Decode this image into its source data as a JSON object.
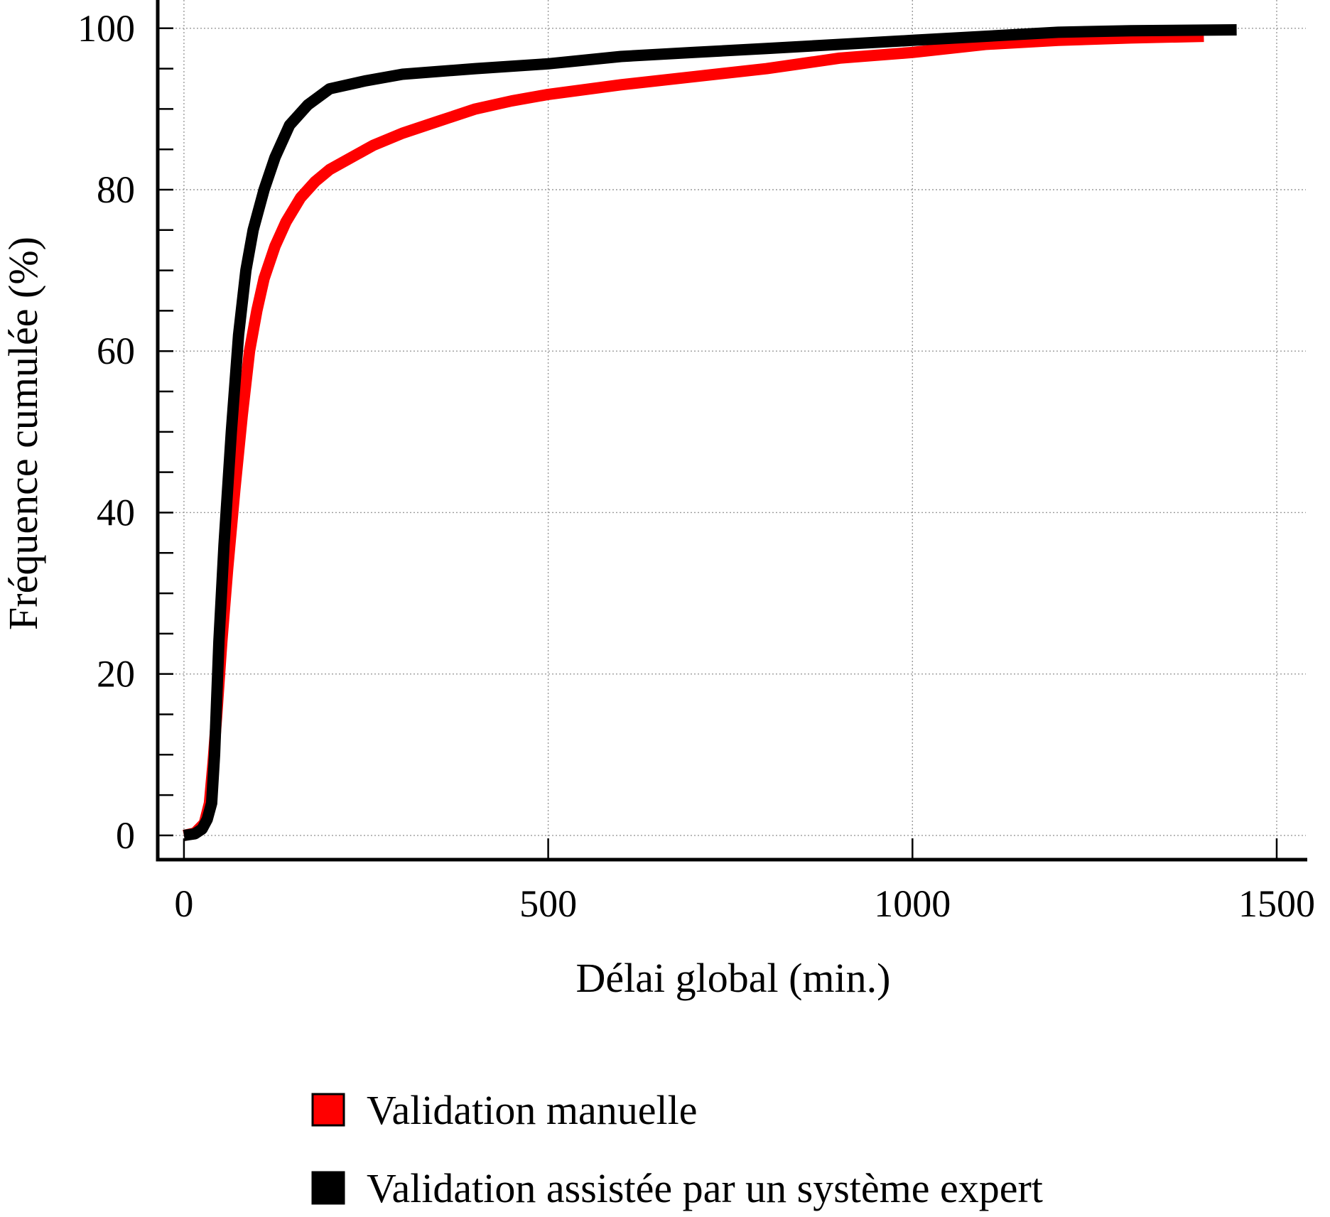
{
  "chart_data": {
    "type": "line",
    "title": "",
    "xlabel": "Délai global (min.)",
    "ylabel": "Fréquence cumulée (%)",
    "xlim": [
      -36,
      1540
    ],
    "ylim": [
      -3,
      103.5
    ],
    "xticks": [
      0,
      500,
      1000,
      1500
    ],
    "yticks": [
      0,
      20,
      40,
      60,
      80,
      100
    ],
    "y_minor_step": 5,
    "grid": true,
    "legend_position": "bottom-center",
    "series": [
      {
        "name": "Validation manuelle",
        "color": "#ff0000",
        "x": [
          0,
          15,
          28,
          35,
          40,
          45,
          52,
          60,
          70,
          80,
          90,
          100,
          110,
          125,
          140,
          160,
          180,
          200,
          230,
          260,
          300,
          350,
          400,
          450,
          500,
          600,
          700,
          800,
          900,
          1000,
          1100,
          1200,
          1300,
          1400
        ],
        "y": [
          0,
          0.3,
          1.5,
          4,
          9,
          15,
          24,
          33,
          43,
          52,
          60,
          65,
          69,
          73,
          76,
          79,
          81,
          82.5,
          84,
          85.5,
          87,
          88.5,
          90,
          91,
          91.8,
          93,
          94,
          95,
          96.3,
          97,
          98,
          98.5,
          98.8,
          99
        ]
      },
      {
        "name": "Validation assistée par un système expert",
        "color": "#000000",
        "x": [
          0,
          15,
          25,
          32,
          38,
          42,
          48,
          55,
          65,
          75,
          85,
          95,
          110,
          125,
          145,
          170,
          200,
          250,
          300,
          400,
          500,
          600,
          700,
          800,
          900,
          1000,
          1100,
          1200,
          1300,
          1445
        ],
        "y": [
          0,
          0.2,
          0.8,
          2,
          4,
          10,
          24,
          36,
          50,
          62,
          70,
          75,
          80,
          84,
          88,
          90.5,
          92.5,
          93.5,
          94.3,
          95,
          95.6,
          96.5,
          97,
          97.5,
          98,
          98.5,
          99,
          99.5,
          99.7,
          99.8
        ]
      }
    ]
  },
  "legend": {
    "items": [
      {
        "label": "Validation manuelle",
        "color": "#ff0000"
      },
      {
        "label": "Validation assistée par un système expert",
        "color": "#000000"
      }
    ]
  }
}
